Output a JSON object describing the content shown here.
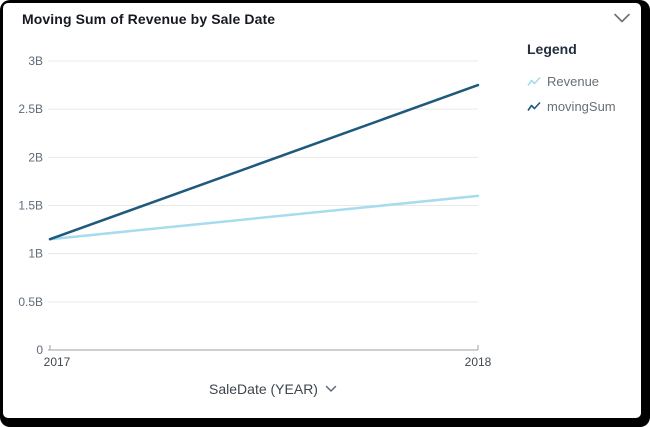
{
  "header": {
    "title": "Moving Sum of Revenue by Sale Date",
    "menu_icon": "chevron-down"
  },
  "legend": {
    "title": "Legend"
  },
  "xaxis_control": {
    "dropdown_icon": "chevron-down"
  },
  "colors": {
    "grid": "#e9e9e9",
    "axis": "#9aa0a6",
    "title_text": "#16191f",
    "legend_text": "#687078",
    "chevron": "#6b7178"
  },
  "chart_data": {
    "type": "line",
    "title": "Moving Sum of Revenue by Sale Date",
    "xlabel": "SaleDate (YEAR)",
    "ylabel": "",
    "x": [
      "2017",
      "2018"
    ],
    "ylim": [
      0,
      3000000000
    ],
    "grid": true,
    "legend_position": "right",
    "yticks": [
      {
        "value": 0,
        "label": "0"
      },
      {
        "value": 500000000,
        "label": "0.5B"
      },
      {
        "value": 1000000000,
        "label": "1B"
      },
      {
        "value": 1500000000,
        "label": "1.5B"
      },
      {
        "value": 2000000000,
        "label": "2B"
      },
      {
        "value": 2500000000,
        "label": "2.5B"
      },
      {
        "value": 3000000000,
        "label": "3B"
      }
    ],
    "series": [
      {
        "name": "Revenue",
        "color": "#a6dced",
        "values": [
          1150000000,
          1600000000
        ]
      },
      {
        "name": "movingSum",
        "color": "#1e5a7d",
        "values": [
          1150000000,
          2750000000
        ]
      }
    ]
  }
}
